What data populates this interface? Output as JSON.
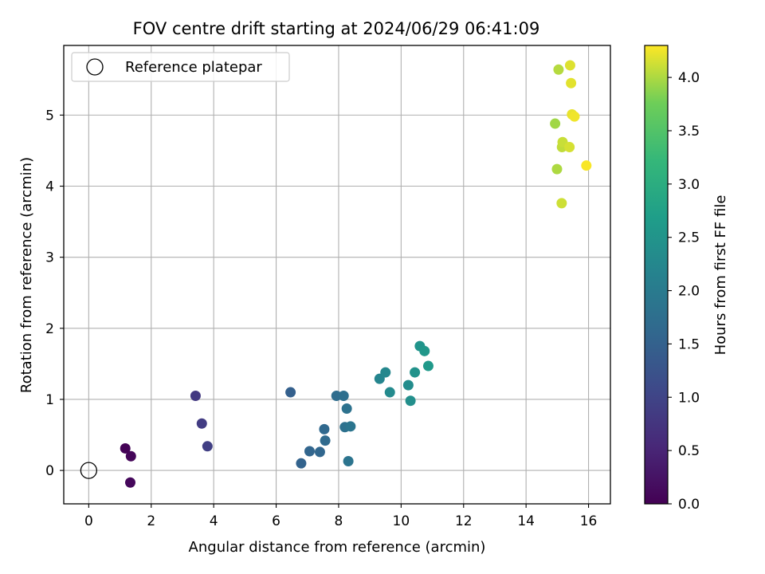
{
  "chart_data": {
    "type": "scatter",
    "title": "FOV centre drift starting at 2024/06/29 06:41:09",
    "xlabel": "Angular distance from reference (arcmin)",
    "ylabel": "Rotation from reference (arcmin)",
    "xlim": [
      -0.8,
      16.7
    ],
    "ylim": [
      -0.47,
      5.98
    ],
    "xticks": [
      0,
      2,
      4,
      6,
      8,
      10,
      12,
      14,
      16
    ],
    "yticks": [
      0,
      1,
      2,
      3,
      4,
      5
    ],
    "grid": true,
    "legend": {
      "position": "top-left",
      "entries": [
        "Reference platepar"
      ]
    },
    "reference_point": {
      "x": 0,
      "y": 0
    },
    "colorbar": {
      "label": "Hours from first FF file",
      "colormap": "viridis",
      "range": [
        0.0,
        4.3
      ],
      "ticks": [
        "0.0",
        "0.5",
        "1.0",
        "1.5",
        "2.0",
        "2.5",
        "3.0",
        "3.5",
        "4.0"
      ]
    },
    "points": [
      {
        "x": 1.17,
        "y": 0.31,
        "c": 0.03
      },
      {
        "x": 1.35,
        "y": 0.2,
        "c": 0.07
      },
      {
        "x": 1.33,
        "y": -0.17,
        "c": 0.1
      },
      {
        "x": 3.42,
        "y": 1.05,
        "c": 0.82
      },
      {
        "x": 3.62,
        "y": 0.66,
        "c": 0.87
      },
      {
        "x": 3.8,
        "y": 0.34,
        "c": 0.92
      },
      {
        "x": 6.46,
        "y": 1.1,
        "c": 1.48
      },
      {
        "x": 6.8,
        "y": 0.1,
        "c": 1.53
      },
      {
        "x": 7.07,
        "y": 0.27,
        "c": 1.57
      },
      {
        "x": 7.4,
        "y": 0.26,
        "c": 1.6
      },
      {
        "x": 7.54,
        "y": 0.58,
        "c": 1.64
      },
      {
        "x": 7.57,
        "y": 0.42,
        "c": 1.67
      },
      {
        "x": 7.93,
        "y": 1.05,
        "c": 1.72
      },
      {
        "x": 8.16,
        "y": 1.05,
        "c": 1.76
      },
      {
        "x": 8.2,
        "y": 0.61,
        "c": 1.79
      },
      {
        "x": 8.26,
        "y": 0.87,
        "c": 1.82
      },
      {
        "x": 8.31,
        "y": 0.13,
        "c": 1.86
      },
      {
        "x": 8.38,
        "y": 0.62,
        "c": 1.89
      },
      {
        "x": 9.31,
        "y": 1.29,
        "c": 2.2
      },
      {
        "x": 9.5,
        "y": 1.38,
        "c": 2.25
      },
      {
        "x": 9.64,
        "y": 1.1,
        "c": 2.3
      },
      {
        "x": 10.23,
        "y": 1.2,
        "c": 2.35
      },
      {
        "x": 10.3,
        "y": 0.98,
        "c": 2.4
      },
      {
        "x": 10.44,
        "y": 1.38,
        "c": 2.45
      },
      {
        "x": 10.6,
        "y": 1.75,
        "c": 2.5
      },
      {
        "x": 10.75,
        "y": 1.68,
        "c": 2.55
      },
      {
        "x": 10.87,
        "y": 1.47,
        "c": 2.6
      },
      {
        "x": 14.93,
        "y": 4.88,
        "c": 3.95
      },
      {
        "x": 14.99,
        "y": 4.24,
        "c": 4.0
      },
      {
        "x": 15.04,
        "y": 5.64,
        "c": 4.03
      },
      {
        "x": 15.15,
        "y": 4.55,
        "c": 4.07
      },
      {
        "x": 15.17,
        "y": 4.62,
        "c": 4.1
      },
      {
        "x": 15.14,
        "y": 3.76,
        "c": 4.12
      },
      {
        "x": 15.39,
        "y": 4.55,
        "c": 4.15
      },
      {
        "x": 15.41,
        "y": 5.7,
        "c": 4.18
      },
      {
        "x": 15.44,
        "y": 5.45,
        "c": 4.2
      },
      {
        "x": 15.47,
        "y": 5.01,
        "c": 4.22
      },
      {
        "x": 15.55,
        "y": 4.98,
        "c": 4.25
      },
      {
        "x": 15.93,
        "y": 4.29,
        "c": 4.28
      }
    ]
  }
}
